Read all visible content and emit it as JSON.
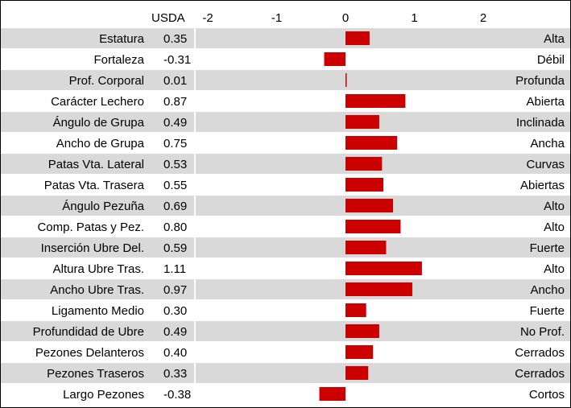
{
  "chart_data": {
    "type": "bar",
    "orientation": "horizontal",
    "value_header": "USDA",
    "xlim": [
      -2,
      2
    ],
    "x_ticks": [
      "-2",
      "-1",
      "0",
      "1",
      "2"
    ],
    "bar_color": "#cc0000",
    "stripe_color": "#d9d9d9",
    "categories": [
      "Estatura",
      "Fortaleza",
      "Prof. Corporal",
      "Carácter Lechero",
      "Ángulo de Grupa",
      "Ancho de Grupa",
      "Patas Vta. Lateral",
      "Patas Vta. Trasera",
      "Ángulo Pezuña",
      "Comp. Patas y Pez.",
      "Inserción Ubre Del.",
      "Altura Ubre Tras.",
      "Ancho Ubre Tras.",
      "Ligamento Medio",
      "Profundidad de Ubre",
      "Pezones Delanteros",
      "Pezones Traseros",
      "Largo Pezones"
    ],
    "value_labels": [
      "0.35",
      "-0.31",
      "0.01",
      "0.87",
      "0.49",
      "0.75",
      "0.53",
      "0.55",
      "0.69",
      "0.80",
      "0.59",
      "1.11",
      "0.97",
      "0.30",
      "0.49",
      "0.40",
      "0.33",
      "-0.38"
    ],
    "values": [
      0.35,
      -0.31,
      0.01,
      0.87,
      0.49,
      0.75,
      0.53,
      0.55,
      0.69,
      0.8,
      0.59,
      1.11,
      0.97,
      0.3,
      0.49,
      0.4,
      0.33,
      -0.38
    ],
    "descriptors": [
      "Alta",
      "Débil",
      "Profunda",
      "Abierta",
      "Inclinada",
      "Ancha",
      "Curvas",
      "Abiertas",
      "Alto",
      "Alto",
      "Fuerte",
      "Alto",
      "Ancho",
      "Fuerte",
      "No Prof.",
      "Cerrados",
      "Cerrados",
      "Cortos"
    ]
  }
}
